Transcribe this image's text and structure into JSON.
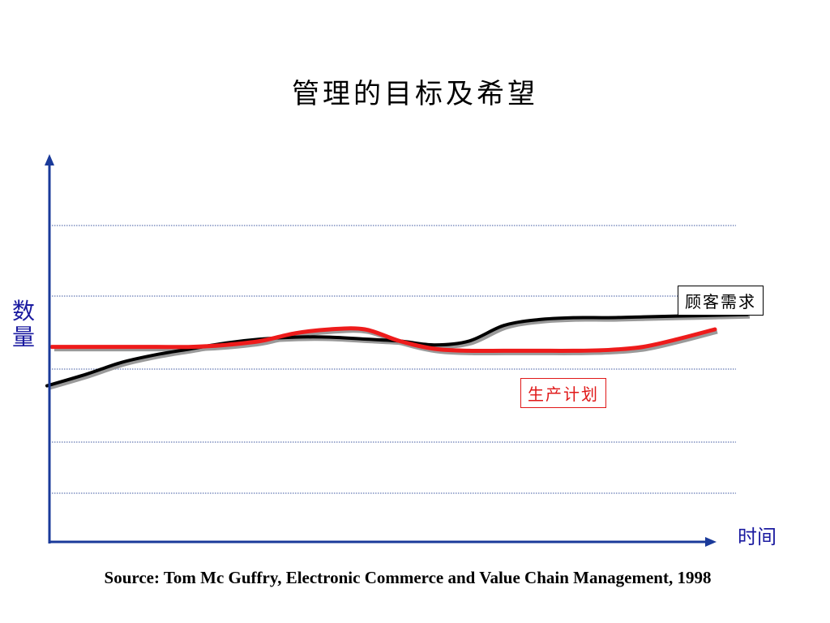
{
  "title": "管理的目标及希望",
  "source": "Source: Tom Mc Guffry, Electronic Commerce and Value Chain Management, 1998",
  "colors": {
    "axis": "#1a3a9a",
    "grid": "#7f8fc0",
    "demand": "#000000",
    "plan": "#ee1b1b",
    "shadow": "#9a9a9a"
  },
  "chart_data": {
    "type": "line",
    "title": "管理的目标及希望",
    "xlabel": "时间",
    "ylabel": "数量",
    "grid": true,
    "x": [
      0,
      5,
      10,
      15,
      20,
      25,
      30,
      35,
      40,
      45,
      50,
      55,
      60,
      65,
      70,
      75,
      80,
      85,
      90,
      95,
      100
    ],
    "ylim": [
      0,
      100
    ],
    "series": [
      {
        "name": "顾客需求",
        "values": [
          40.5,
          43.5,
          46.5,
          48.5,
          50,
          51.5,
          52.5,
          53,
          53,
          52.5,
          52,
          51,
          52,
          56,
          57.5,
          58,
          58,
          58.2,
          58.4,
          58.6,
          58.8
        ]
      },
      {
        "name": "生产计划",
        "values": [
          50.5,
          50.5,
          50.5,
          50.5,
          50.5,
          51,
          52,
          54,
          55,
          55,
          52,
          50,
          49.5,
          49.5,
          49.5,
          49.5,
          49.7,
          50.5,
          52.5,
          55,
          55
        ]
      }
    ]
  }
}
